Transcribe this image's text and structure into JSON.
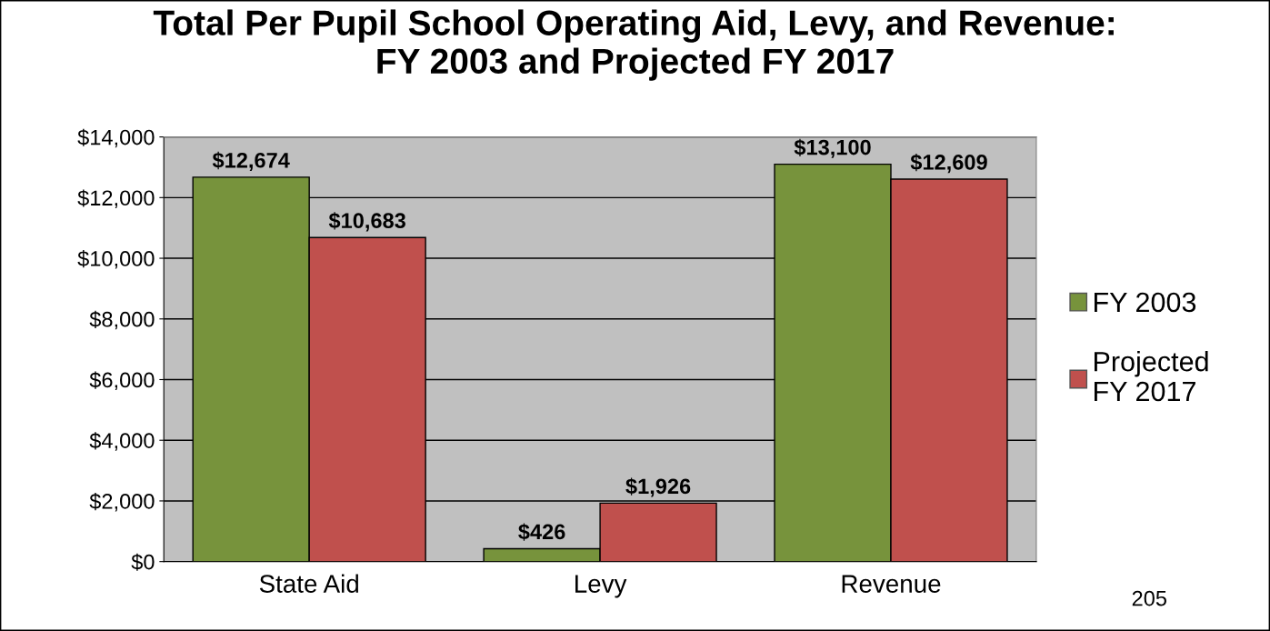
{
  "chart_data": {
    "type": "bar",
    "title": "Total Per Pupil School Operating Aid, Levy, and Revenue:\nFY 2003 and Projected FY 2017",
    "categories": [
      "State Aid",
      "Levy",
      "Revenue"
    ],
    "series": [
      {
        "name": "FY 2003",
        "color": "#77933c",
        "values": [
          12674,
          426,
          13100
        ],
        "value_labels": [
          "$12,674",
          "$426",
          "$13,100"
        ]
      },
      {
        "name": "Projected\nFY 2017",
        "color": "#c0504d",
        "values": [
          10683,
          1926,
          12609
        ],
        "value_labels": [
          "$10,683",
          "$1,926",
          "$12,609"
        ]
      }
    ],
    "ylim": [
      0,
      14000
    ],
    "yticks": [
      {
        "value": 0,
        "label": "$0"
      },
      {
        "value": 2000,
        "label": "$2,000"
      },
      {
        "value": 4000,
        "label": "$4,000"
      },
      {
        "value": 6000,
        "label": "$6,000"
      },
      {
        "value": 8000,
        "label": "$8,000"
      },
      {
        "value": 10000,
        "label": "$10,000"
      },
      {
        "value": 12000,
        "label": "$12,000"
      },
      {
        "value": 14000,
        "label": "$14,000"
      }
    ],
    "grid": "y",
    "legend": "right",
    "annotations": [
      "205"
    ]
  }
}
